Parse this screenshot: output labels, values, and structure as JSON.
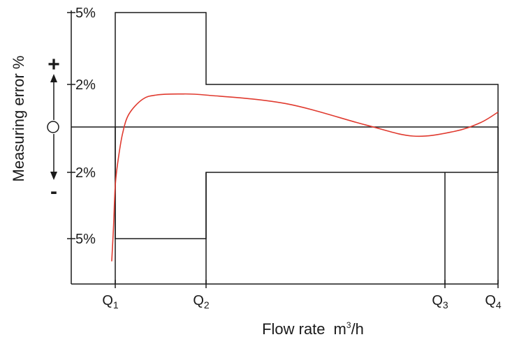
{
  "chart_data": {
    "type": "line",
    "title": "",
    "xlabel": "Flow rate",
    "xlabel_unit": "m",
    "xlabel_unit_exp": "3",
    "xlabel_unit_tail": "/h",
    "ylabel": "Measuring error %",
    "y_signs": {
      "plus": "+",
      "zero": "○",
      "minus": "-"
    },
    "y_ticks": [
      {
        "value": 5,
        "label": "5%"
      },
      {
        "value": 2,
        "label": "2%"
      },
      {
        "value": -2,
        "label": "2%"
      },
      {
        "value": -5,
        "label": "5%"
      }
    ],
    "x_ticks": [
      {
        "name": "Q",
        "sub": "1",
        "value": 1
      },
      {
        "name": "Q",
        "sub": "2",
        "value": 2
      },
      {
        "name": "Q",
        "sub": "3",
        "value": 3.5
      },
      {
        "name": "Q",
        "sub": "4",
        "value": 4.1
      }
    ],
    "xlim": [
      0.5,
      4.1
    ],
    "ylim": [
      -7,
      5
    ],
    "tolerance_upper": [
      {
        "x": [
          1,
          2
        ],
        "y": 5
      },
      {
        "x": [
          2,
          4.1
        ],
        "y": 2
      }
    ],
    "tolerance_lower": [
      {
        "x": [
          1,
          2
        ],
        "y": -5
      },
      {
        "x": [
          2,
          4.1
        ],
        "y": -2
      }
    ],
    "series": [
      {
        "color": "#e03a2f",
        "points": [
          [
            0.96,
            -6
          ],
          [
            0.98,
            -4.5
          ],
          [
            1.0,
            -2.6
          ],
          [
            1.03,
            -1.5
          ],
          [
            1.08,
            -0.3
          ],
          [
            1.15,
            0.6
          ],
          [
            1.3,
            1.3
          ],
          [
            1.45,
            1.5
          ],
          [
            1.7,
            1.55
          ],
          [
            2.0,
            1.5
          ],
          [
            2.5,
            1.1
          ],
          [
            3.0,
            0.1
          ],
          [
            3.3,
            -0.4
          ],
          [
            3.6,
            -0.2
          ],
          [
            3.9,
            0.2
          ],
          [
            4.1,
            0.7
          ]
        ]
      }
    ]
  }
}
